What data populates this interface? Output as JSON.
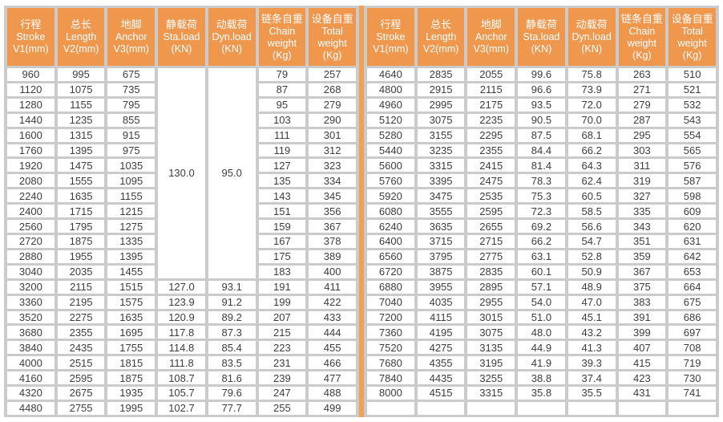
{
  "colors": {
    "header_bg": "#F0974E",
    "header_text": "#FFFFFF",
    "grid_line": "#CBCBCB",
    "center_divider": "#F0A055",
    "cell_bg": "#FFFFFF",
    "cell_text": "#3D3D3D",
    "page_bg": "#FFFFFF"
  },
  "header_columns": [
    {
      "lines": [
        "行程",
        "Stroke",
        "V1(mm)"
      ]
    },
    {
      "lines": [
        "总长",
        "Length",
        "V2(mm)"
      ]
    },
    {
      "lines": [
        "地脚",
        "Anchor",
        "V3(mm)"
      ]
    },
    {
      "lines": [
        "静载荷",
        "Sta.load",
        "(KN)"
      ]
    },
    {
      "lines": [
        "动载荷",
        "Dyn.load",
        "(KN)"
      ]
    },
    {
      "lines": [
        "链条自重",
        "Chain",
        "weight",
        "(Kg)"
      ]
    },
    {
      "lines": [
        "设备自重",
        "Total",
        "weight",
        "(Kg)"
      ]
    }
  ],
  "left_table": {
    "rowspans": {
      "0,3": 14,
      "0,4": 14
    },
    "rows": [
      [
        "960",
        "995",
        "675",
        "130.0",
        "95.0",
        "79",
        "257"
      ],
      [
        "1120",
        "1075",
        "735",
        null,
        null,
        "87",
        "268"
      ],
      [
        "1280",
        "1155",
        "795",
        null,
        null,
        "95",
        "279"
      ],
      [
        "1440",
        "1235",
        "855",
        null,
        null,
        "103",
        "290"
      ],
      [
        "1600",
        "1315",
        "915",
        null,
        null,
        "111",
        "301"
      ],
      [
        "1760",
        "1395",
        "975",
        null,
        null,
        "119",
        "312"
      ],
      [
        "1920",
        "1475",
        "1035",
        null,
        null,
        "127",
        "323"
      ],
      [
        "2080",
        "1555",
        "1095",
        null,
        null,
        "135",
        "334"
      ],
      [
        "2240",
        "1635",
        "1155",
        null,
        null,
        "143",
        "345"
      ],
      [
        "2400",
        "1715",
        "1215",
        null,
        null,
        "151",
        "356"
      ],
      [
        "2560",
        "1795",
        "1275",
        null,
        null,
        "159",
        "367"
      ],
      [
        "2720",
        "1875",
        "1335",
        null,
        null,
        "167",
        "378"
      ],
      [
        "2880",
        "1955",
        "1395",
        null,
        null,
        "175",
        "389"
      ],
      [
        "3040",
        "2035",
        "1455",
        null,
        null,
        "183",
        "400"
      ],
      [
        "3200",
        "2115",
        "1515",
        "127.0",
        "93.1",
        "191",
        "411"
      ],
      [
        "3360",
        "2195",
        "1575",
        "123.9",
        "91.2",
        "199",
        "422"
      ],
      [
        "3520",
        "2275",
        "1635",
        "120.9",
        "89.2",
        "207",
        "433"
      ],
      [
        "3680",
        "2355",
        "1695",
        "117.8",
        "87.3",
        "215",
        "444"
      ],
      [
        "3840",
        "2435",
        "1755",
        "114.8",
        "85.4",
        "223",
        "455"
      ],
      [
        "4000",
        "2515",
        "1815",
        "111.8",
        "83.5",
        "231",
        "466"
      ],
      [
        "4160",
        "2595",
        "1875",
        "108.7",
        "81.6",
        "239",
        "477"
      ],
      [
        "4320",
        "2675",
        "1935",
        "105.7",
        "79.6",
        "247",
        "488"
      ],
      [
        "4480",
        "2755",
        "1995",
        "102.7",
        "77.7",
        "255",
        "499"
      ]
    ],
    "trailing_empty_row": false
  },
  "right_table": {
    "rowspans": {},
    "rows": [
      [
        "4640",
        "2835",
        "2055",
        "99.6",
        "75.8",
        "263",
        "510"
      ],
      [
        "4800",
        "2915",
        "2115",
        "96.6",
        "73.9",
        "271",
        "521"
      ],
      [
        "4960",
        "2995",
        "2175",
        "93.5",
        "72.0",
        "279",
        "532"
      ],
      [
        "5120",
        "3075",
        "2235",
        "90.5",
        "70.0",
        "287",
        "543"
      ],
      [
        "5280",
        "3155",
        "2295",
        "87.5",
        "68.1",
        "295",
        "554"
      ],
      [
        "5440",
        "3235",
        "2355",
        "84.4",
        "66.2",
        "303",
        "565"
      ],
      [
        "5600",
        "3315",
        "2415",
        "81.4",
        "64.3",
        "311",
        "576"
      ],
      [
        "5760",
        "3395",
        "2475",
        "78.3",
        "62.4",
        "319",
        "587"
      ],
      [
        "5920",
        "3475",
        "2535",
        "75.3",
        "60.5",
        "327",
        "598"
      ],
      [
        "6080",
        "3555",
        "2595",
        "72.3",
        "58.5",
        "335",
        "609"
      ],
      [
        "6240",
        "3635",
        "2655",
        "69.2",
        "56.6",
        "343",
        "620"
      ],
      [
        "6400",
        "3715",
        "2715",
        "66.2",
        "54.7",
        "351",
        "631"
      ],
      [
        "6560",
        "3795",
        "2775",
        "63.1",
        "52.8",
        "359",
        "642"
      ],
      [
        "6720",
        "3875",
        "2835",
        "60.1",
        "50.9",
        "367",
        "653"
      ],
      [
        "6880",
        "3955",
        "2895",
        "57.1",
        "48.9",
        "375",
        "664"
      ],
      [
        "7040",
        "4035",
        "2955",
        "54.0",
        "47.0",
        "383",
        "675"
      ],
      [
        "7200",
        "4115",
        "3015",
        "51.0",
        "45.1",
        "391",
        "686"
      ],
      [
        "7360",
        "4195",
        "3075",
        "48.0",
        "43.2",
        "399",
        "697"
      ],
      [
        "7520",
        "4275",
        "3135",
        "44.9",
        "41.3",
        "407",
        "708"
      ],
      [
        "7680",
        "4355",
        "3195",
        "41.9",
        "39.3",
        "415",
        "719"
      ],
      [
        "7840",
        "4435",
        "3255",
        "38.8",
        "37.4",
        "423",
        "730"
      ],
      [
        "8000",
        "4515",
        "3315",
        "35.8",
        "35.5",
        "431",
        "741"
      ]
    ],
    "trailing_empty_row": true
  }
}
